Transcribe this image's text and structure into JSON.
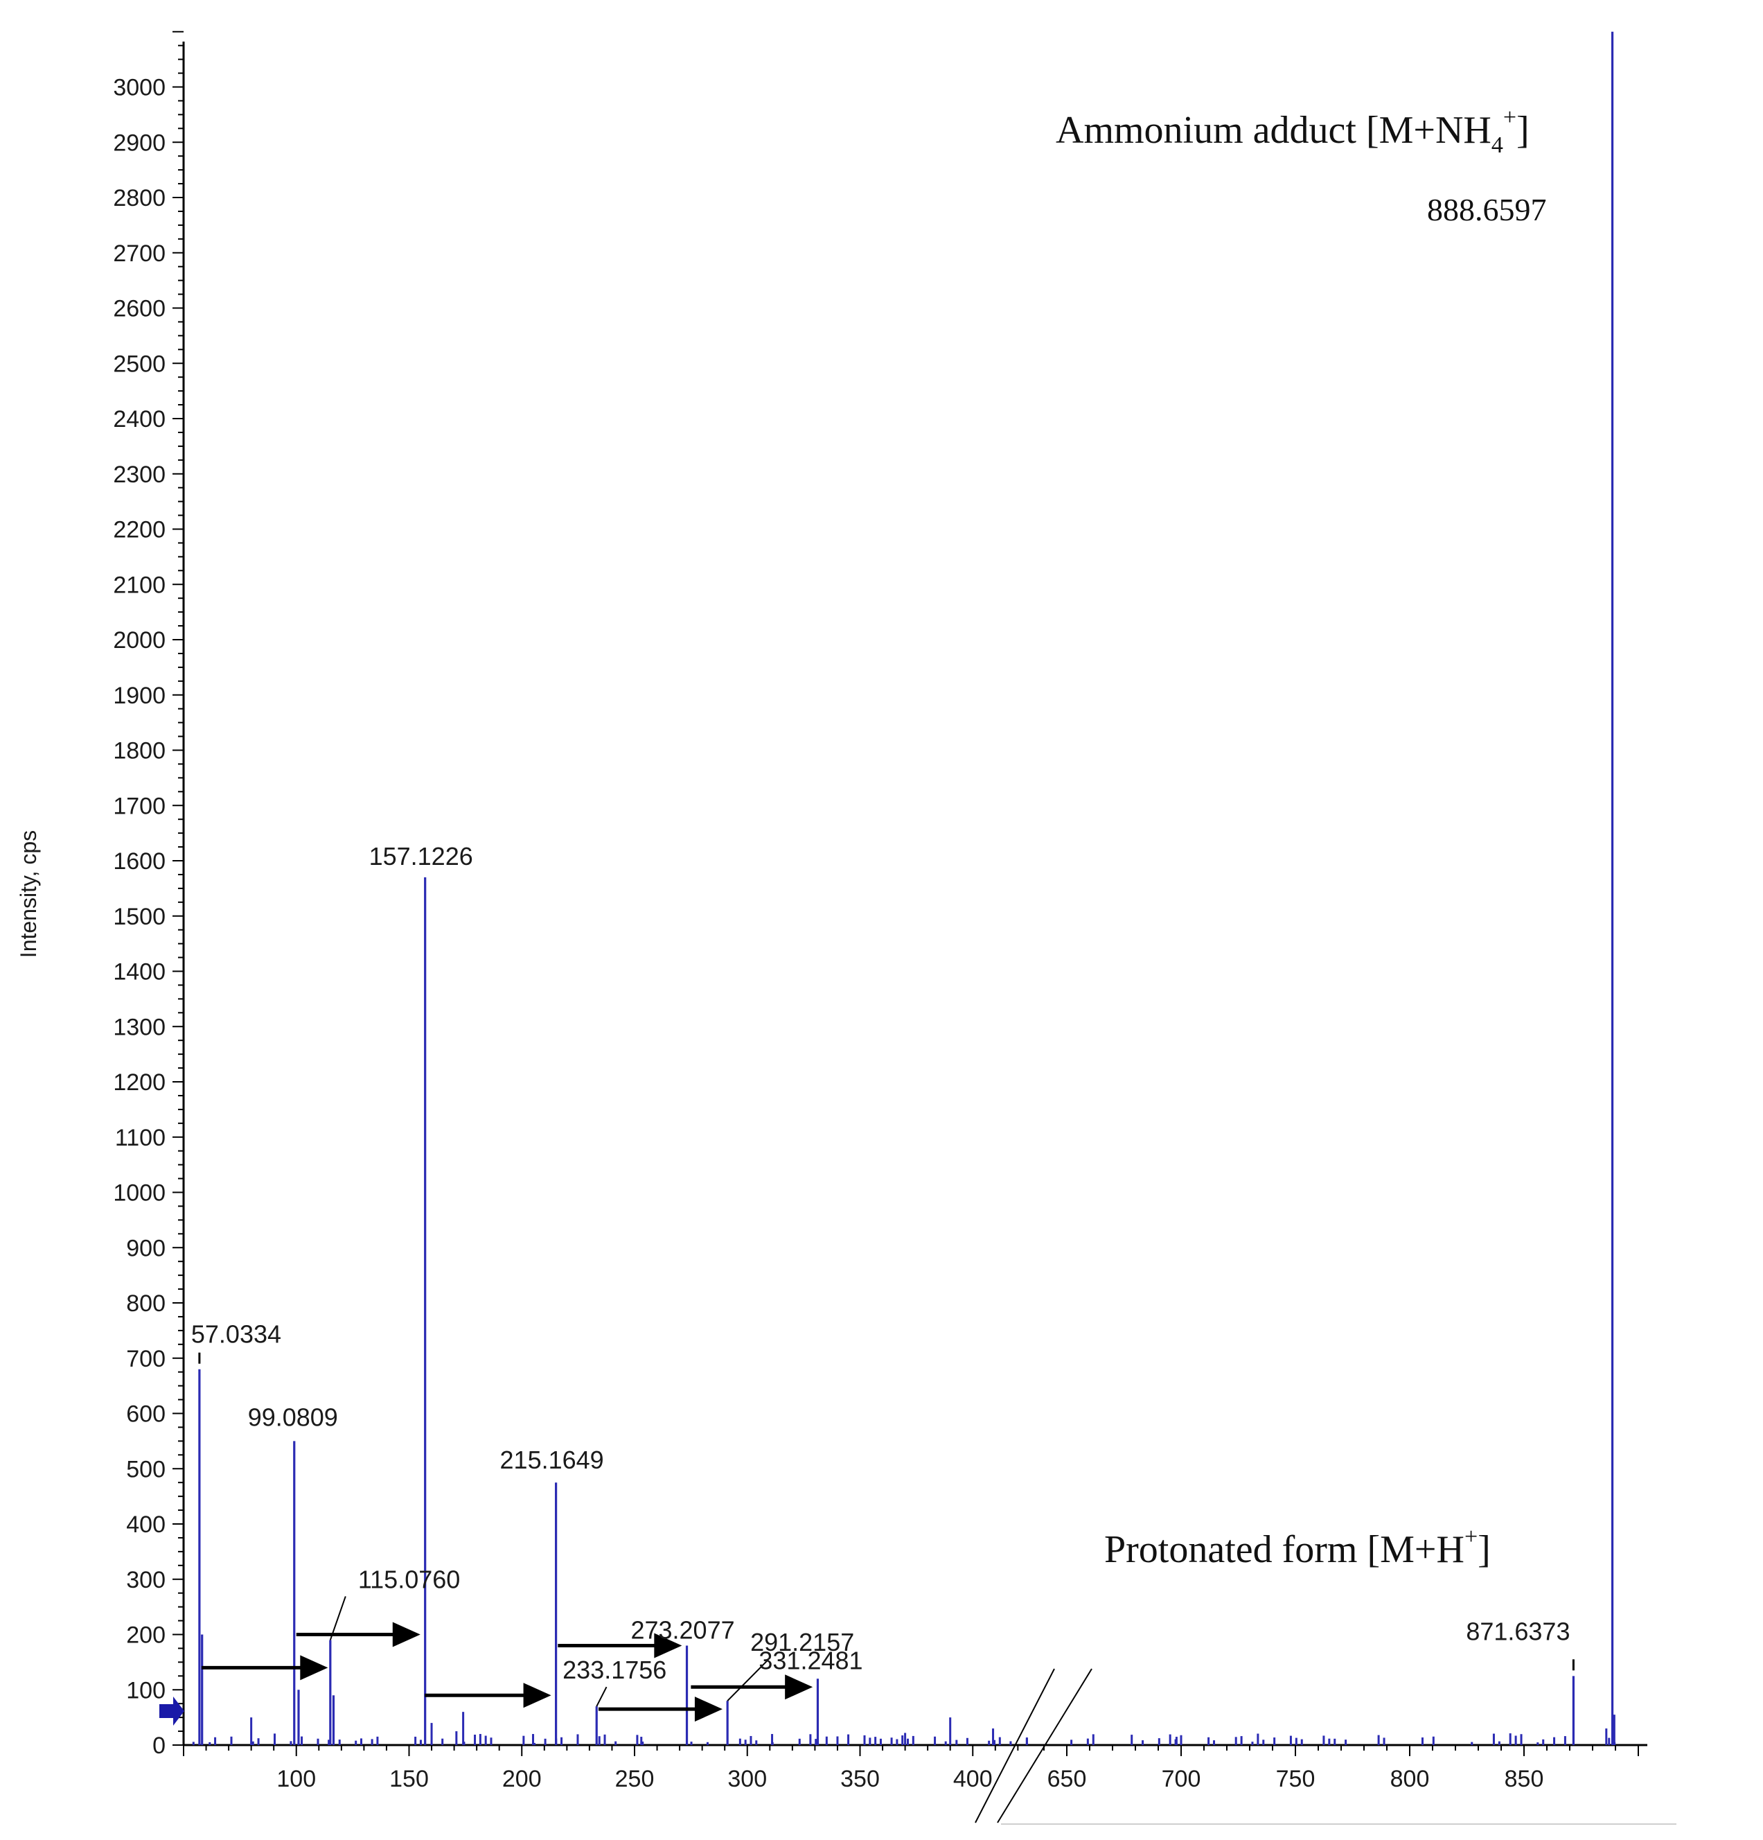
{
  "chart_data": {
    "type": "bar",
    "title": "",
    "xlabel": "",
    "ylabel": "Intensity, cps",
    "ylim": [
      0,
      3100
    ],
    "yticks": [
      0,
      100,
      200,
      300,
      400,
      500,
      600,
      700,
      800,
      900,
      1000,
      1100,
      1200,
      1300,
      1400,
      1500,
      1600,
      1700,
      1800,
      1900,
      2000,
      2100,
      2200,
      2300,
      2400,
      2500,
      2600,
      2700,
      2800,
      2900,
      3000
    ],
    "x_segments": [
      {
        "range": [
          50,
          425
        ],
        "ticks": [
          100,
          150,
          200,
          250,
          300,
          350,
          400
        ]
      },
      {
        "range": [
          635,
          900
        ],
        "ticks": [
          650,
          700,
          750,
          800,
          850
        ]
      }
    ],
    "axis_break": true,
    "colors": {
      "peak": "#2b2bb3",
      "axis": "#000000",
      "arrow": "#000000",
      "precursor_marker": "#1a1aa8"
    },
    "peaks": [
      {
        "mz": 57.0334,
        "intensity": 680,
        "label": "57.0334"
      },
      {
        "mz": 58.2,
        "intensity": 200,
        "label": ""
      },
      {
        "mz": 99.0809,
        "intensity": 550,
        "label": "99.0809"
      },
      {
        "mz": 101.0,
        "intensity": 100,
        "label": ""
      },
      {
        "mz": 115.076,
        "intensity": 190,
        "label": "115.0760"
      },
      {
        "mz": 116.5,
        "intensity": 90,
        "label": ""
      },
      {
        "mz": 157.1226,
        "intensity": 1570,
        "label": "157.1226"
      },
      {
        "mz": 215.1649,
        "intensity": 475,
        "label": "215.1649"
      },
      {
        "mz": 233.1756,
        "intensity": 70,
        "label": "233.1756"
      },
      {
        "mz": 273.2077,
        "intensity": 180,
        "label": "273.2077"
      },
      {
        "mz": 291.2157,
        "intensity": 80,
        "label": "291.2157"
      },
      {
        "mz": 331.2481,
        "intensity": 120,
        "label": "331.2481"
      },
      {
        "mz": 871.6373,
        "intensity": 125,
        "label": "871.6373"
      },
      {
        "mz": 888.6597,
        "intensity": 3100,
        "label": ""
      }
    ],
    "noise_peaks": [
      {
        "mz": 80,
        "intensity": 50
      },
      {
        "mz": 160,
        "intensity": 40
      },
      {
        "mz": 174,
        "intensity": 60
      },
      {
        "mz": 171,
        "intensity": 25
      },
      {
        "mz": 205,
        "intensity": 20
      },
      {
        "mz": 253,
        "intensity": 15
      },
      {
        "mz": 311,
        "intensity": 20
      },
      {
        "mz": 370,
        "intensity": 22
      },
      {
        "mz": 390,
        "intensity": 50
      },
      {
        "mz": 409,
        "intensity": 30
      },
      {
        "mz": 424,
        "intensity": 12
      },
      {
        "mz": 698,
        "intensity": 15
      },
      {
        "mz": 886,
        "intensity": 30
      },
      {
        "mz": 889.5,
        "intensity": 55
      }
    ],
    "arrows": [
      {
        "from": 58,
        "to": 114,
        "y": 140
      },
      {
        "from": 100,
        "to": 155,
        "y": 200
      },
      {
        "from": 157,
        "to": 213,
        "y": 90
      },
      {
        "from": 216,
        "to": 271,
        "y": 180
      },
      {
        "from": 234,
        "to": 289,
        "y": 65
      },
      {
        "from": 275,
        "to": 329,
        "y": 105
      }
    ],
    "annotations": {
      "ammonium_pre": "Ammonium adduct [M+NH",
      "ammonium_sub": "4",
      "ammonium_sup": "+",
      "ammonium_post": "]",
      "ammonium_mz": "888.6597",
      "protonated_pre": "Protonated form [M+H",
      "protonated_sup": "+",
      "protonated_post": "]"
    }
  }
}
